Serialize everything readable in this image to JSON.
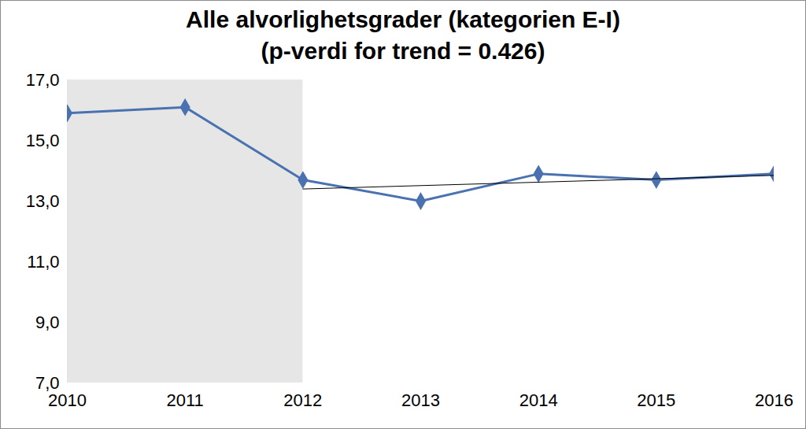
{
  "chart_data": {
    "type": "line",
    "title": "Alle alvorlighetsgrader (kategorien E-I)",
    "subtitle": "(p-verdi for trend = 0.426)",
    "x": [
      2010,
      2011,
      2012,
      2013,
      2014,
      2015,
      2016
    ],
    "series": [
      {
        "name": "Alle alvorlighetsgrader",
        "color": "#4a72b0",
        "marker": "diamond",
        "line_style": "solid",
        "values": [
          15.9,
          16.1,
          13.7,
          13.0,
          13.9,
          13.7,
          13.9
        ]
      }
    ],
    "trend": {
      "x": [
        2012,
        2016
      ],
      "values": [
        13.4,
        13.85
      ],
      "color": "#000000",
      "line_style": "solid"
    },
    "shaded_region": {
      "x": [
        2010,
        2012
      ],
      "color": "#e6e6e6"
    },
    "xlim": [
      2010,
      2016
    ],
    "xticks": [
      2010,
      2011,
      2012,
      2013,
      2014,
      2015,
      2016
    ],
    "ylim": [
      7,
      17
    ],
    "yticks": [
      {
        "value": 7,
        "label": "7,0"
      },
      {
        "value": 9,
        "label": "9,0"
      },
      {
        "value": 11,
        "label": "11,0"
      },
      {
        "value": 13,
        "label": "13,0"
      },
      {
        "value": 15,
        "label": "15,0"
      },
      {
        "value": 17,
        "label": "17,0"
      }
    ],
    "grid": false
  }
}
